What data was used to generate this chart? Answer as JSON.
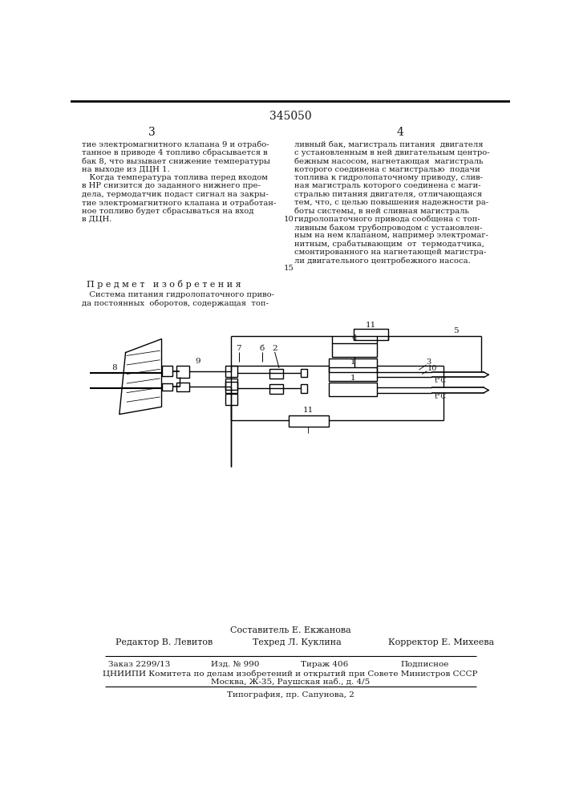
{
  "page_number": "345050",
  "col3_header": "3",
  "col4_header": "4",
  "col3_text": [
    "тие электромагнитного клапана 9 и отрабо-",
    "танное в приводе 4 топливо сбрасывается в",
    "бак 8, что вызывает снижение температуры",
    "на выходе из ДЦН 1.",
    "   Когда температура топлива перед входом",
    "в НР снизится до заданного нижнего пре-",
    "дела, термодатчик подаст сигнал на закры-",
    "тие электромагнитного клапана и отработан-",
    "ное топливо будет сбрасываться на вход",
    "в ДЦН."
  ],
  "col4_text_top": [
    "ливный бак, магистраль питания  двигателя",
    "с установленным в ней двигательным центро-",
    "бежным насосом, нагнетающая  магистраль",
    "которого соединена с магистралью  подачи",
    "топлива к гидролопаточному приводу, слив-",
    "ная магистраль которого соединена с маги-",
    "стралью питания двигателя, отличающаяся",
    "тем, что, с целью повышения надежности ра-",
    "боты системы, в ней сливная магистраль"
  ],
  "line_number_10": "10",
  "col4_text_bottom": [
    "гидролопаточного привода сообщена с топ-",
    "ливным баком трубопроводом с установлен-",
    "ным на нем клапаном, например электромаг-",
    "нитным, срабатывающим  от  термодатчика,",
    "смонтированного на нагнетающей магистра-",
    "ли двигательного центробежного насоса."
  ],
  "line_number_15": "15",
  "subject_header": "П р е д м е т   и з о б р е т е н и я",
  "subject_text": [
    "   Система питания гидролопаточного приво-",
    "да постоянных  оборотов, содержащая  топ-"
  ],
  "footer_compiler": "Составитель Е. Екжанова",
  "footer_editor": "Редактор В. Левитов",
  "footer_techred": "Техред Л. Куклина",
  "footer_corrector": "Корректор Е. Михеева",
  "footer_order": "Заказ 2299/13",
  "footer_izdno": "Изд. № 990",
  "footer_tirazh": "Тираж 406",
  "footer_podpis": "Подписное",
  "footer_tsniipi": "ЦНИИПИ Комитета по делам изобретений и открытий при Совете Министров СССР",
  "footer_address": "Москва, Ж-35, Раушская наб., д. 4/5",
  "footer_tipografia": "Типография, пр. Сапунова, 2",
  "bg_color": "#ffffff",
  "text_color": "#1a1a1a",
  "line_color": "#000000"
}
